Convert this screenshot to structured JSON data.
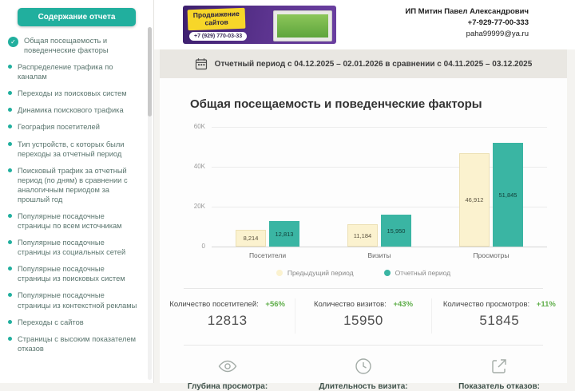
{
  "colors": {
    "accent": "#21af9e",
    "previous_period": "#fbf2cf",
    "current_period": "#3ab5a3",
    "delta_positive": "#5fae4a"
  },
  "sidebar": {
    "title": "Содержание отчета",
    "check_glyph": "✓",
    "items": [
      {
        "label": "Общая посещаемость и поведенческие факторы",
        "active": true
      },
      {
        "label": "Распределение трафика по каналам"
      },
      {
        "label": "Переходы из поисковых систем"
      },
      {
        "label": "Динамика поискового трафика"
      },
      {
        "label": "География посетителей"
      },
      {
        "label": "Тип устройств, с которых были переходы за отчетный период"
      },
      {
        "label": "Поисковый трафик за отчетный период (по дням) в сравнении с аналогичным периодом за прошлый год"
      },
      {
        "label": "Популярные посадочные страницы по всем источникам"
      },
      {
        "label": "Популярные посадочные страницы из социальных сетей"
      },
      {
        "label": "Популярные посадочные страницы из поисковых систем"
      },
      {
        "label": "Популярные посадочные страницы из контекстной рекламы"
      },
      {
        "label": "Переходы с сайтов"
      },
      {
        "label": "Страницы с высоким показателем отказов"
      }
    ]
  },
  "header": {
    "banner": {
      "line1": "Продвижение",
      "line2": "сайтов",
      "phone": "+7 (929) 770-03-33"
    },
    "contact": {
      "name": "ИП Митин Павел Александрович",
      "phone": "+7-929-77-00-333",
      "email": "paha99999@ya.ru"
    }
  },
  "period_bar": {
    "text": "Отчетный период с 04.12.2025 – 02.01.2026 в сравнении с 04.11.2025 – 03.12.2025"
  },
  "main": {
    "title": "Общая посещаемость и поведенческие факторы",
    "stats": [
      {
        "label": "Количество посетителей:",
        "delta": "+56%",
        "value": "12813"
      },
      {
        "label": "Количество визитов:",
        "delta": "+43%",
        "value": "15950"
      },
      {
        "label": "Количество просмотров:",
        "delta": "+11%",
        "value": "51845"
      }
    ],
    "metrics": [
      {
        "icon": "eye-icon",
        "label": "Глубина просмотра:"
      },
      {
        "icon": "clock-icon",
        "label": "Длительность визита:"
      },
      {
        "icon": "bounce-arrow-icon",
        "label": "Показатель отказов:"
      }
    ]
  },
  "chart_data": {
    "type": "bar",
    "title": "",
    "xlabel": "",
    "ylabel": "",
    "categories": [
      "Посетители",
      "Визиты",
      "Просмотры"
    ],
    "series": [
      {
        "name": "Предыдущий период",
        "color": "#fbf2cf",
        "border": "#ece0b4",
        "label_color": "#5b5340",
        "values": [
          8214,
          11184,
          46912
        ],
        "labels": [
          "8,214",
          "11,184",
          "46,912"
        ]
      },
      {
        "name": "Отчетный период",
        "color": "#3ab5a3",
        "border": "",
        "label_color": "#12413a",
        "values": [
          12813,
          15950,
          51845
        ],
        "labels": [
          "12,813",
          "15,950",
          "51,845"
        ]
      }
    ],
    "ylim": [
      0,
      60000
    ],
    "yticks": [
      {
        "label": "0",
        "value": 0
      },
      {
        "label": "20K",
        "value": 20000
      },
      {
        "label": "40K",
        "value": 40000
      },
      {
        "label": "60K",
        "value": 60000
      }
    ],
    "grid": true,
    "legend_position": "bottom"
  }
}
